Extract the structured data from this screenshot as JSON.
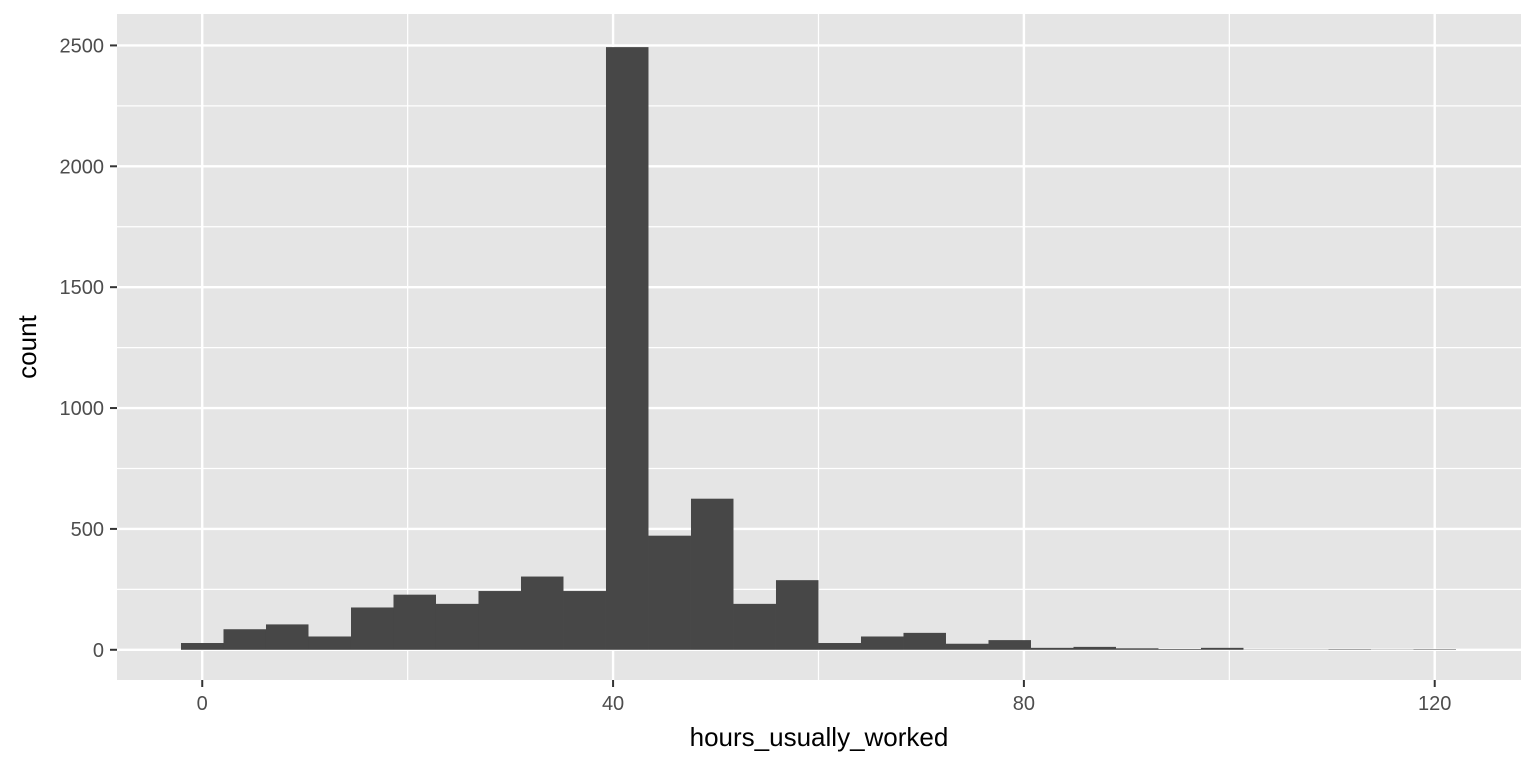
{
  "chart_data": {
    "type": "bar",
    "title": "",
    "xlabel": "hours_usually_worked",
    "ylabel": "count",
    "xlim": [
      -8.3,
      128.4
    ],
    "ylim": [
      -125,
      2630
    ],
    "x_ticks": [
      0,
      40,
      80,
      120
    ],
    "x_minor_ticks": [
      20,
      60,
      100
    ],
    "y_ticks": [
      0,
      500,
      1000,
      1500,
      2000,
      2500
    ],
    "y_minor_ticks": [
      250,
      750,
      1250,
      1750,
      2250
    ],
    "bin_width": 4.138,
    "bins": [
      {
        "x": 0.0,
        "count": 28
      },
      {
        "x": 4.138,
        "count": 85
      },
      {
        "x": 8.276,
        "count": 105
      },
      {
        "x": 12.414,
        "count": 55
      },
      {
        "x": 16.552,
        "count": 175
      },
      {
        "x": 20.69,
        "count": 228
      },
      {
        "x": 24.828,
        "count": 190
      },
      {
        "x": 28.966,
        "count": 243
      },
      {
        "x": 33.103,
        "count": 303
      },
      {
        "x": 37.241,
        "count": 243
      },
      {
        "x": 41.379,
        "count": 2493
      },
      {
        "x": 45.517,
        "count": 472
      },
      {
        "x": 49.655,
        "count": 625
      },
      {
        "x": 53.793,
        "count": 190
      },
      {
        "x": 57.931,
        "count": 288
      },
      {
        "x": 62.069,
        "count": 28
      },
      {
        "x": 66.207,
        "count": 55
      },
      {
        "x": 70.345,
        "count": 70
      },
      {
        "x": 74.483,
        "count": 25
      },
      {
        "x": 78.621,
        "count": 40
      },
      {
        "x": 82.759,
        "count": 8
      },
      {
        "x": 86.897,
        "count": 12
      },
      {
        "x": 91.034,
        "count": 6
      },
      {
        "x": 95.172,
        "count": 3
      },
      {
        "x": 99.31,
        "count": 8
      },
      {
        "x": 103.448,
        "count": 1
      },
      {
        "x": 107.586,
        "count": 1
      },
      {
        "x": 111.724,
        "count": 2
      },
      {
        "x": 115.862,
        "count": 1
      },
      {
        "x": 120.0,
        "count": 2
      }
    ],
    "grid": true,
    "colors": {
      "panel": "#e5e5e5",
      "grid_major": "#ffffff",
      "bar": "#474747"
    }
  }
}
